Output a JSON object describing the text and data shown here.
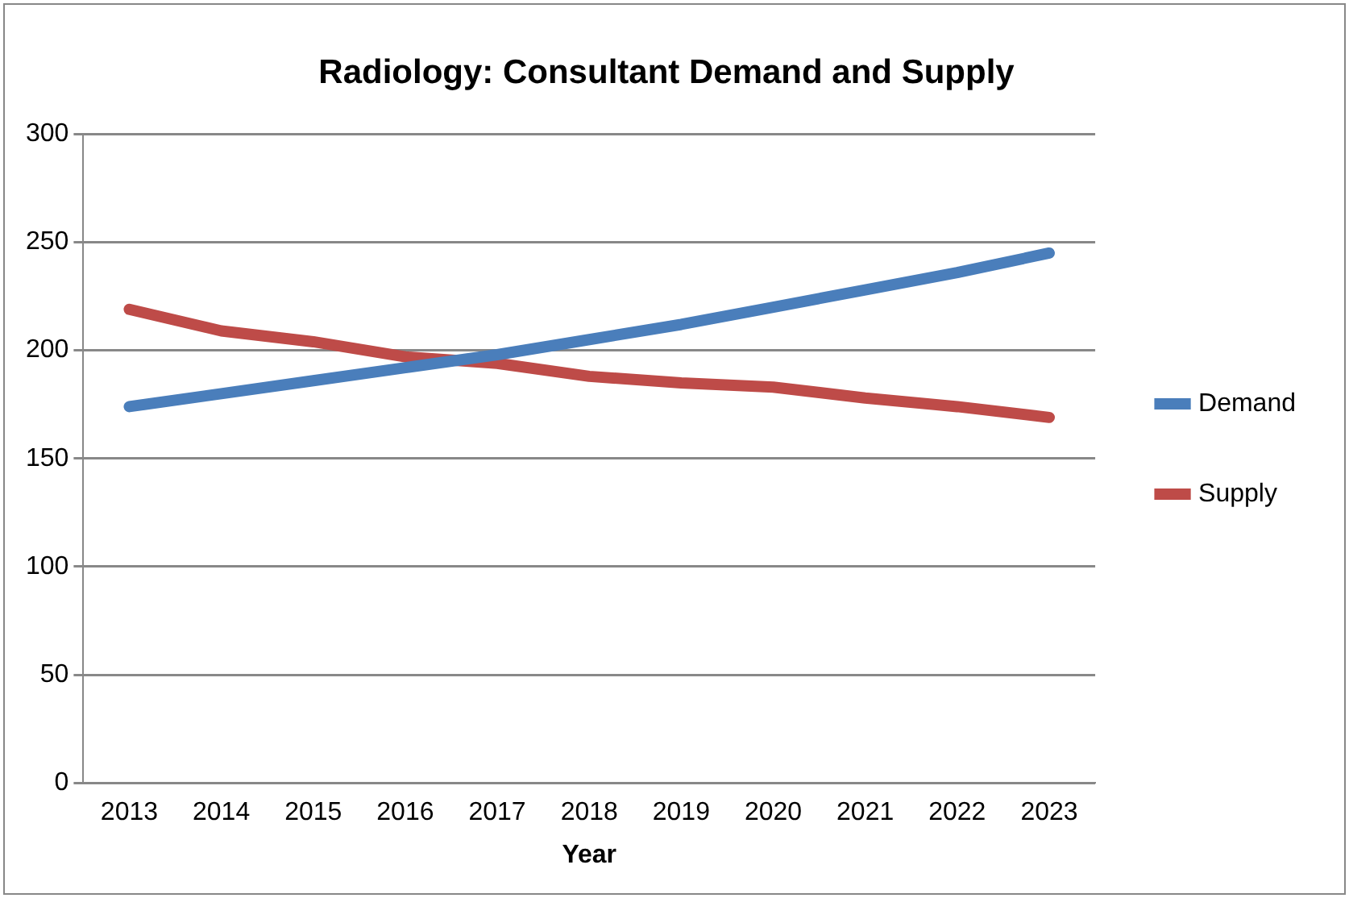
{
  "chart_data": {
    "type": "line",
    "title": "Radiology: Consultant Demand and Supply",
    "xlabel": "Year",
    "categories": [
      "2013",
      "2014",
      "2015",
      "2016",
      "2017",
      "2018",
      "2019",
      "2020",
      "2021",
      "2022",
      "2023"
    ],
    "series": [
      {
        "name": "Demand",
        "color": "#4a7ebb",
        "values": [
          174,
          180,
          186,
          192,
          198,
          205,
          212,
          220,
          228,
          236,
          245
        ]
      },
      {
        "name": "Supply",
        "color": "#be4b48",
        "values": [
          219,
          209,
          204,
          197,
          194,
          188,
          185,
          183,
          178,
          174,
          169
        ]
      }
    ],
    "ylim": [
      0,
      300
    ],
    "yticks": [
      0,
      50,
      100,
      150,
      200,
      250,
      300
    ],
    "grid": "y",
    "legend": "right",
    "marker": "none",
    "line_style": "solid"
  }
}
